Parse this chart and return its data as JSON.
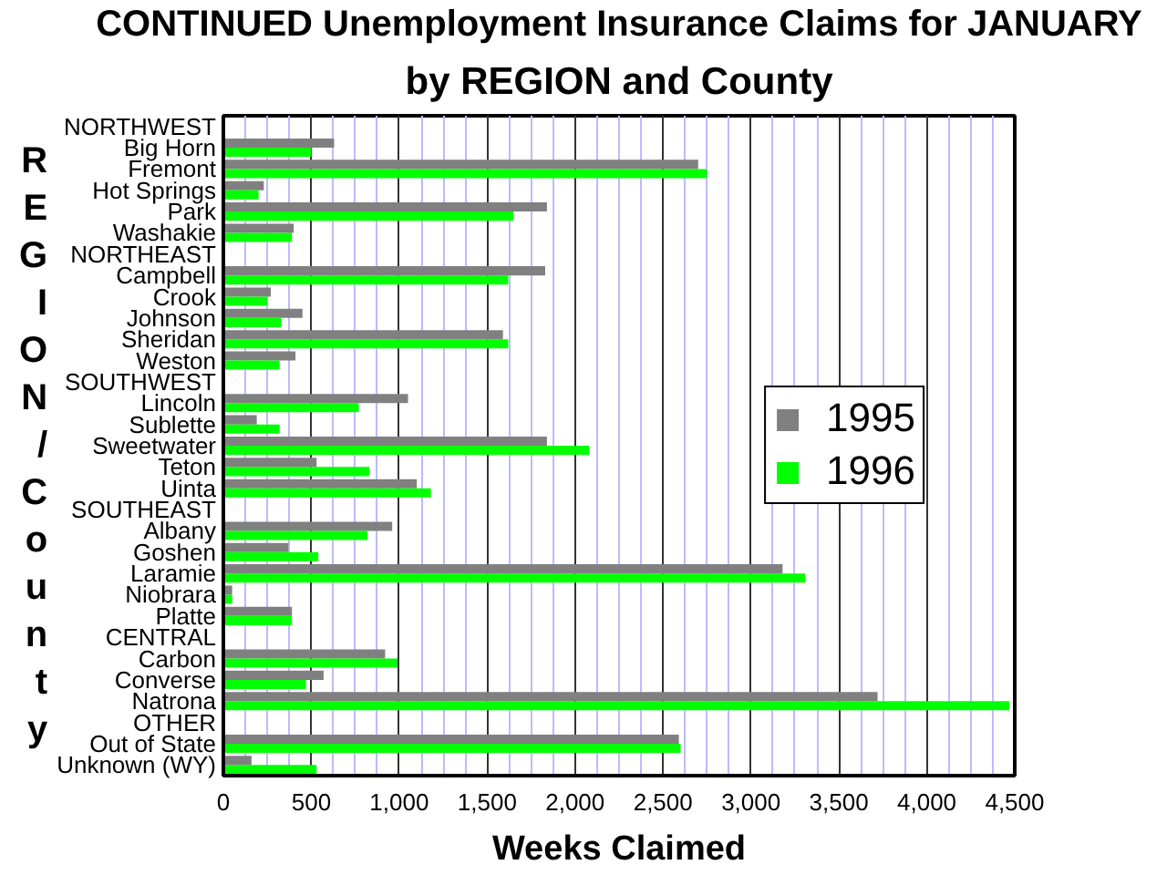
{
  "chart_data": {
    "type": "bar",
    "orientation": "horizontal",
    "title": "CONTINUED Unemployment Insurance Claims for JANUARY",
    "subtitle": "by REGION and County",
    "xlabel": "Weeks Claimed",
    "ylabel": "REGION/County",
    "categories": [
      "NORTHWEST",
      "Big Horn",
      "Fremont",
      "Hot Springs",
      "Park",
      "Washakie",
      "NORTHEAST",
      "Campbell",
      "Crook",
      "Johnson",
      "Sheridan",
      "Weston",
      "SOUTHWEST",
      "Lincoln",
      "Sublette",
      "Sweetwater",
      "Teton",
      "Uinta",
      "SOUTHEAST",
      "Albany",
      "Goshen",
      "Laramie",
      "Niobrara",
      "Platte",
      "CENTRAL",
      "Carbon",
      "Converse",
      "Natrona",
      "OTHER",
      "Out of State",
      "Unknown (WY)"
    ],
    "series": [
      {
        "name": "1995",
        "color": "#808080",
        "values": [
          null,
          630,
          2700,
          230,
          1840,
          400,
          null,
          1830,
          270,
          450,
          1590,
          410,
          null,
          1050,
          190,
          1840,
          530,
          1100,
          null,
          960,
          370,
          3180,
          50,
          390,
          null,
          920,
          570,
          3720,
          null,
          2590,
          160
        ]
      },
      {
        "name": "1996",
        "color": "#00ff00",
        "values": [
          null,
          500,
          2750,
          200,
          1650,
          390,
          null,
          1620,
          250,
          330,
          1620,
          320,
          null,
          770,
          320,
          2080,
          830,
          1180,
          null,
          820,
          540,
          3310,
          50,
          390,
          null,
          990,
          470,
          4470,
          null,
          2600,
          530
        ]
      }
    ],
    "xlim": [
      0,
      4500
    ],
    "xticks": [
      0,
      {
        "value": 125,
        "label": null
      },
      {
        "value": 250,
        "label": null
      },
      {
        "value": 375,
        "label": null
      },
      500,
      {
        "value": 625,
        "label": null
      },
      {
        "value": 750,
        "label": null
      },
      {
        "value": 875,
        "label": null
      },
      {
        "value": 1000,
        "label": "1,000"
      },
      {
        "value": 1125,
        "label": null
      },
      {
        "value": 1250,
        "label": null
      },
      {
        "value": 1375,
        "label": null
      },
      {
        "value": 1500,
        "label": "1,500"
      },
      {
        "value": 1625,
        "label": null
      },
      {
        "value": 1750,
        "label": null
      },
      {
        "value": 1875,
        "label": null
      },
      {
        "value": 2000,
        "label": "2,000"
      },
      {
        "value": 2125,
        "label": null
      },
      {
        "value": 2250,
        "label": null
      },
      {
        "value": 2375,
        "label": null
      },
      {
        "value": 2500,
        "label": "2,500"
      },
      {
        "value": 2625,
        "label": null
      },
      {
        "value": 2750,
        "label": null
      },
      {
        "value": 2875,
        "label": null
      },
      {
        "value": 3000,
        "label": "3,000"
      },
      {
        "value": 3125,
        "label": null
      },
      {
        "value": 3250,
        "label": null
      },
      {
        "value": 3375,
        "label": null
      },
      {
        "value": 3500,
        "label": "3,500"
      },
      {
        "value": 3625,
        "label": null
      },
      {
        "value": 3750,
        "label": null
      },
      {
        "value": 3875,
        "label": null
      },
      {
        "value": 4000,
        "label": "4,000"
      },
      {
        "value": 4125,
        "label": null
      },
      {
        "value": 4250,
        "label": null
      },
      {
        "value": 4375,
        "label": null
      },
      {
        "value": 4500,
        "label": "4,500"
      }
    ],
    "grid": "x",
    "legend": "right"
  }
}
